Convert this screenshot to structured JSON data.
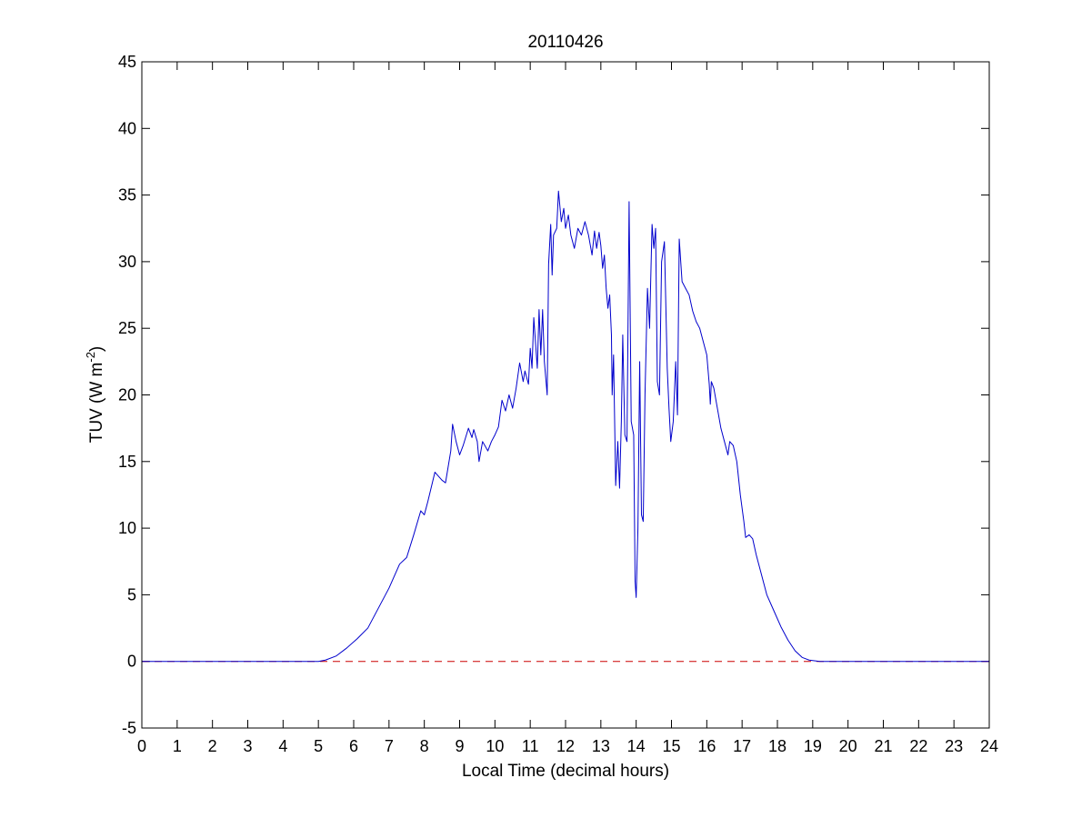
{
  "chart_data": {
    "type": "line",
    "title": "20110426",
    "xlabel": "Local Time (decimal hours)",
    "ylabel": {
      "main": "TUV (W m",
      "sup": "-2",
      "close": ")"
    },
    "xlim": [
      0,
      24
    ],
    "ylim": [
      -5,
      45
    ],
    "xticks": [
      "0",
      "1",
      "2",
      "3",
      "4",
      "5",
      "6",
      "7",
      "8",
      "9",
      "10",
      "11",
      "12",
      "13",
      "14",
      "15",
      "16",
      "17",
      "18",
      "19",
      "20",
      "21",
      "22",
      "23",
      "24"
    ],
    "yticks": [
      "-5",
      "0",
      "5",
      "10",
      "15",
      "20",
      "25",
      "30",
      "35",
      "40",
      "45"
    ],
    "grid": false,
    "colors": {
      "series": "#0000cc",
      "baseline": "#cc0000"
    },
    "series": [
      {
        "points": [
          [
            0,
            0
          ],
          [
            5.0,
            0
          ],
          [
            5.2,
            0.1
          ],
          [
            5.5,
            0.4
          ],
          [
            5.8,
            1.0
          ],
          [
            6.1,
            1.7
          ],
          [
            6.4,
            2.5
          ],
          [
            6.7,
            4.0
          ],
          [
            7.0,
            5.5
          ],
          [
            7.3,
            7.3
          ],
          [
            7.5,
            7.8
          ],
          [
            7.7,
            9.5
          ],
          [
            7.9,
            11.3
          ],
          [
            8.0,
            11.0
          ],
          [
            8.1,
            12.0
          ],
          [
            8.3,
            14.2
          ],
          [
            8.5,
            13.6
          ],
          [
            8.6,
            13.4
          ],
          [
            8.75,
            15.8
          ],
          [
            8.8,
            17.8
          ],
          [
            8.9,
            16.5
          ],
          [
            9.0,
            15.5
          ],
          [
            9.1,
            16.2
          ],
          [
            9.25,
            17.5
          ],
          [
            9.35,
            16.8
          ],
          [
            9.4,
            17.4
          ],
          [
            9.5,
            16.5
          ],
          [
            9.55,
            15.0
          ],
          [
            9.65,
            16.5
          ],
          [
            9.8,
            15.8
          ],
          [
            9.9,
            16.5
          ],
          [
            10.0,
            17.0
          ],
          [
            10.1,
            17.6
          ],
          [
            10.2,
            19.6
          ],
          [
            10.3,
            18.8
          ],
          [
            10.4,
            20.0
          ],
          [
            10.5,
            19.0
          ],
          [
            10.6,
            20.5
          ],
          [
            10.7,
            22.4
          ],
          [
            10.8,
            21.0
          ],
          [
            10.85,
            21.8
          ],
          [
            10.95,
            20.8
          ],
          [
            11.0,
            23.5
          ],
          [
            11.05,
            22.0
          ],
          [
            11.1,
            25.8
          ],
          [
            11.2,
            22.0
          ],
          [
            11.25,
            26.4
          ],
          [
            11.3,
            23.0
          ],
          [
            11.35,
            26.4
          ],
          [
            11.4,
            22.5
          ],
          [
            11.48,
            20.0
          ],
          [
            11.52,
            29.8
          ],
          [
            11.58,
            32.8
          ],
          [
            11.62,
            29.0
          ],
          [
            11.66,
            32.0
          ],
          [
            11.75,
            32.5
          ],
          [
            11.8,
            35.3
          ],
          [
            11.88,
            33.0
          ],
          [
            11.95,
            34.0
          ],
          [
            12.0,
            32.5
          ],
          [
            12.08,
            33.5
          ],
          [
            12.15,
            32.0
          ],
          [
            12.25,
            31.0
          ],
          [
            12.35,
            32.5
          ],
          [
            12.45,
            32.0
          ],
          [
            12.55,
            33.0
          ],
          [
            12.65,
            32.0
          ],
          [
            12.75,
            30.5
          ],
          [
            12.82,
            32.3
          ],
          [
            12.88,
            31.0
          ],
          [
            12.95,
            32.2
          ],
          [
            13.0,
            31.2
          ],
          [
            13.05,
            29.5
          ],
          [
            13.1,
            30.5
          ],
          [
            13.15,
            28.0
          ],
          [
            13.2,
            26.5
          ],
          [
            13.25,
            27.5
          ],
          [
            13.3,
            24.5
          ],
          [
            13.32,
            20.0
          ],
          [
            13.36,
            23.0
          ],
          [
            13.42,
            13.2
          ],
          [
            13.48,
            16.5
          ],
          [
            13.53,
            13.0
          ],
          [
            13.58,
            18.0
          ],
          [
            13.62,
            24.5
          ],
          [
            13.68,
            17.0
          ],
          [
            13.74,
            16.5
          ],
          [
            13.8,
            34.5
          ],
          [
            13.86,
            18.0
          ],
          [
            13.93,
            17.0
          ],
          [
            13.97,
            6.0
          ],
          [
            14.0,
            4.8
          ],
          [
            14.05,
            10.0
          ],
          [
            14.1,
            22.5
          ],
          [
            14.15,
            11.0
          ],
          [
            14.2,
            10.5
          ],
          [
            14.25,
            20.0
          ],
          [
            14.32,
            28.0
          ],
          [
            14.38,
            25.0
          ],
          [
            14.45,
            32.8
          ],
          [
            14.5,
            31.0
          ],
          [
            14.55,
            32.5
          ],
          [
            14.6,
            21.0
          ],
          [
            14.66,
            20.0
          ],
          [
            14.72,
            30.0
          ],
          [
            14.8,
            31.5
          ],
          [
            14.88,
            22.0
          ],
          [
            14.93,
            19.0
          ],
          [
            14.98,
            16.5
          ],
          [
            15.05,
            18.0
          ],
          [
            15.12,
            22.5
          ],
          [
            15.17,
            18.5
          ],
          [
            15.22,
            31.7
          ],
          [
            15.3,
            28.5
          ],
          [
            15.4,
            28.0
          ],
          [
            15.5,
            27.5
          ],
          [
            15.6,
            26.3
          ],
          [
            15.7,
            25.5
          ],
          [
            15.8,
            25.0
          ],
          [
            15.9,
            24.0
          ],
          [
            16.0,
            23.0
          ],
          [
            16.07,
            20.8
          ],
          [
            16.1,
            19.3
          ],
          [
            16.13,
            21.0
          ],
          [
            16.2,
            20.5
          ],
          [
            16.3,
            19.0
          ],
          [
            16.4,
            17.5
          ],
          [
            16.5,
            16.5
          ],
          [
            16.6,
            15.5
          ],
          [
            16.65,
            16.5
          ],
          [
            16.75,
            16.2
          ],
          [
            16.85,
            15.0
          ],
          [
            16.95,
            12.5
          ],
          [
            17.05,
            10.5
          ],
          [
            17.1,
            9.3
          ],
          [
            17.2,
            9.5
          ],
          [
            17.3,
            9.2
          ],
          [
            17.4,
            8.0
          ],
          [
            17.55,
            6.5
          ],
          [
            17.7,
            5.0
          ],
          [
            17.9,
            3.8
          ],
          [
            18.1,
            2.6
          ],
          [
            18.3,
            1.6
          ],
          [
            18.5,
            0.8
          ],
          [
            18.7,
            0.3
          ],
          [
            18.9,
            0.1
          ],
          [
            19.2,
            0.0
          ],
          [
            24,
            0
          ]
        ]
      }
    ],
    "baseline": {
      "y": 0,
      "style": "dashed"
    }
  }
}
